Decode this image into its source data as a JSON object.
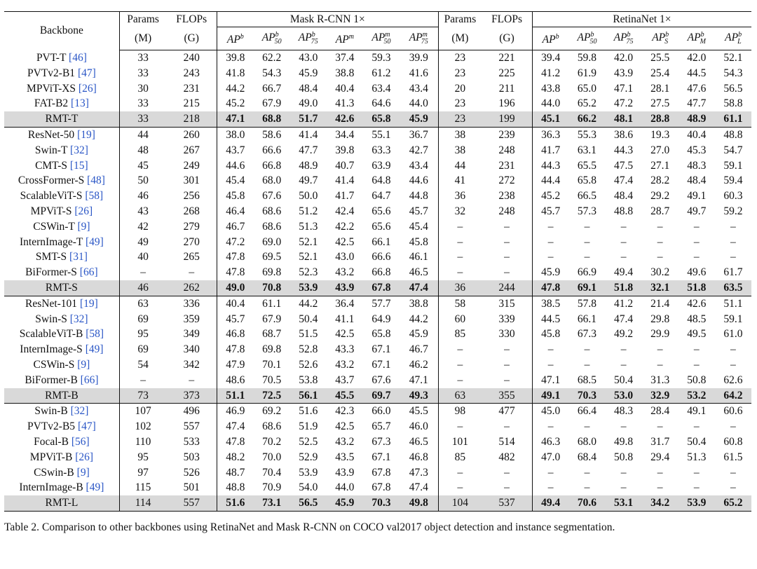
{
  "header": {
    "backbone": "Backbone",
    "params": "Params",
    "params_unit": "(M)",
    "flops": "FLOPs",
    "flops_unit": "(G)",
    "mask_group": "Mask R-CNN 1×",
    "retina_group": "RetinaNet 1×"
  },
  "sections": [
    [
      {
        "name": "PVT-T",
        "ref": "[46]",
        "m": [
          "33",
          "240",
          "39.8",
          "62.2",
          "43.0",
          "37.4",
          "59.3",
          "39.9"
        ],
        "r": [
          "23",
          "221",
          "39.4",
          "59.8",
          "42.0",
          "25.5",
          "42.0",
          "52.1"
        ]
      },
      {
        "name": "PVTv2-B1",
        "ref": "[47]",
        "m": [
          "33",
          "243",
          "41.8",
          "54.3",
          "45.9",
          "38.8",
          "61.2",
          "41.6"
        ],
        "r": [
          "23",
          "225",
          "41.2",
          "61.9",
          "43.9",
          "25.4",
          "44.5",
          "54.3"
        ]
      },
      {
        "name": "MPViT-XS",
        "ref": "[26]",
        "m": [
          "30",
          "231",
          "44.2",
          "66.7",
          "48.4",
          "40.4",
          "63.4",
          "43.4"
        ],
        "r": [
          "20",
          "211",
          "43.8",
          "65.0",
          "47.1",
          "28.1",
          "47.6",
          "56.5"
        ]
      },
      {
        "name": "FAT-B2",
        "ref": "[13]",
        "m": [
          "33",
          "215",
          "45.2",
          "67.9",
          "49.0",
          "41.3",
          "64.6",
          "44.0"
        ],
        "r": [
          "23",
          "196",
          "44.0",
          "65.2",
          "47.2",
          "27.5",
          "47.7",
          "58.8"
        ]
      },
      {
        "name": "RMT-T",
        "ref": "",
        "rmt": true,
        "m": [
          "33",
          "218",
          "47.1",
          "68.8",
          "51.7",
          "42.6",
          "65.8",
          "45.9"
        ],
        "r": [
          "23",
          "199",
          "45.1",
          "66.2",
          "48.1",
          "28.8",
          "48.9",
          "61.1"
        ]
      }
    ],
    [
      {
        "name": "ResNet-50",
        "ref": "[19]",
        "m": [
          "44",
          "260",
          "38.0",
          "58.6",
          "41.4",
          "34.4",
          "55.1",
          "36.7"
        ],
        "r": [
          "38",
          "239",
          "36.3",
          "55.3",
          "38.6",
          "19.3",
          "40.4",
          "48.8"
        ]
      },
      {
        "name": "Swin-T",
        "ref": "[32]",
        "m": [
          "48",
          "267",
          "43.7",
          "66.6",
          "47.7",
          "39.8",
          "63.3",
          "42.7"
        ],
        "r": [
          "38",
          "248",
          "41.7",
          "63.1",
          "44.3",
          "27.0",
          "45.3",
          "54.7"
        ]
      },
      {
        "name": "CMT-S",
        "ref": "[15]",
        "m": [
          "45",
          "249",
          "44.6",
          "66.8",
          "48.9",
          "40.7",
          "63.9",
          "43.4"
        ],
        "r": [
          "44",
          "231",
          "44.3",
          "65.5",
          "47.5",
          "27.1",
          "48.3",
          "59.1"
        ]
      },
      {
        "name": "CrossFormer-S",
        "ref": "[48]",
        "m": [
          "50",
          "301",
          "45.4",
          "68.0",
          "49.7",
          "41.4",
          "64.8",
          "44.6"
        ],
        "r": [
          "41",
          "272",
          "44.4",
          "65.8",
          "47.4",
          "28.2",
          "48.4",
          "59.4"
        ]
      },
      {
        "name": "ScalableViT-S",
        "ref": "[58]",
        "m": [
          "46",
          "256",
          "45.8",
          "67.6",
          "50.0",
          "41.7",
          "64.7",
          "44.8"
        ],
        "r": [
          "36",
          "238",
          "45.2",
          "66.5",
          "48.4",
          "29.2",
          "49.1",
          "60.3"
        ]
      },
      {
        "name": "MPViT-S",
        "ref": "[26]",
        "m": [
          "43",
          "268",
          "46.4",
          "68.6",
          "51.2",
          "42.4",
          "65.6",
          "45.7"
        ],
        "r": [
          "32",
          "248",
          "45.7",
          "57.3",
          "48.8",
          "28.7",
          "49.7",
          "59.2"
        ]
      },
      {
        "name": "CSWin-T",
        "ref": "[9]",
        "m": [
          "42",
          "279",
          "46.7",
          "68.6",
          "51.3",
          "42.2",
          "65.6",
          "45.4"
        ],
        "r": [
          "–",
          "–",
          "–",
          "–",
          "–",
          "–",
          "–",
          "–"
        ]
      },
      {
        "name": "InternImage-T",
        "ref": "[49]",
        "m": [
          "49",
          "270",
          "47.2",
          "69.0",
          "52.1",
          "42.5",
          "66.1",
          "45.8"
        ],
        "r": [
          "–",
          "–",
          "–",
          "–",
          "–",
          "–",
          "–",
          "–"
        ]
      },
      {
        "name": "SMT-S",
        "ref": "[31]",
        "m": [
          "40",
          "265",
          "47.8",
          "69.5",
          "52.1",
          "43.0",
          "66.6",
          "46.1"
        ],
        "r": [
          "–",
          "–",
          "–",
          "–",
          "–",
          "–",
          "–",
          "–"
        ]
      },
      {
        "name": "BiFormer-S",
        "ref": "[66]",
        "m": [
          "–",
          "–",
          "47.8",
          "69.8",
          "52.3",
          "43.2",
          "66.8",
          "46.5"
        ],
        "r": [
          "–",
          "–",
          "45.9",
          "66.9",
          "49.4",
          "30.2",
          "49.6",
          "61.7"
        ]
      },
      {
        "name": "RMT-S",
        "ref": "",
        "rmt": true,
        "m": [
          "46",
          "262",
          "49.0",
          "70.8",
          "53.9",
          "43.9",
          "67.8",
          "47.4"
        ],
        "r": [
          "36",
          "244",
          "47.8",
          "69.1",
          "51.8",
          "32.1",
          "51.8",
          "63.5"
        ]
      }
    ],
    [
      {
        "name": "ResNet-101",
        "ref": "[19]",
        "m": [
          "63",
          "336",
          "40.4",
          "61.1",
          "44.2",
          "36.4",
          "57.7",
          "38.8"
        ],
        "r": [
          "58",
          "315",
          "38.5",
          "57.8",
          "41.2",
          "21.4",
          "42.6",
          "51.1"
        ]
      },
      {
        "name": "Swin-S",
        "ref": "[32]",
        "m": [
          "69",
          "359",
          "45.7",
          "67.9",
          "50.4",
          "41.1",
          "64.9",
          "44.2"
        ],
        "r": [
          "60",
          "339",
          "44.5",
          "66.1",
          "47.4",
          "29.8",
          "48.5",
          "59.1"
        ]
      },
      {
        "name": "ScalableViT-B",
        "ref": "[58]",
        "m": [
          "95",
          "349",
          "46.8",
          "68.7",
          "51.5",
          "42.5",
          "65.8",
          "45.9"
        ],
        "r": [
          "85",
          "330",
          "45.8",
          "67.3",
          "49.2",
          "29.9",
          "49.5",
          "61.0"
        ]
      },
      {
        "name": "InternImage-S",
        "ref": "[49]",
        "m": [
          "69",
          "340",
          "47.8",
          "69.8",
          "52.8",
          "43.3",
          "67.1",
          "46.7"
        ],
        "r": [
          "–",
          "–",
          "–",
          "–",
          "–",
          "–",
          "–",
          "–"
        ]
      },
      {
        "name": "CSWin-S",
        "ref": "[9]",
        "m": [
          "54",
          "342",
          "47.9",
          "70.1",
          "52.6",
          "43.2",
          "67.1",
          "46.2"
        ],
        "r": [
          "–",
          "–",
          "–",
          "–",
          "–",
          "–",
          "–",
          "–"
        ]
      },
      {
        "name": "BiFormer-B",
        "ref": "[66]",
        "m": [
          "–",
          "–",
          "48.6",
          "70.5",
          "53.8",
          "43.7",
          "67.6",
          "47.1"
        ],
        "r": [
          "–",
          "–",
          "47.1",
          "68.5",
          "50.4",
          "31.3",
          "50.8",
          "62.6"
        ]
      },
      {
        "name": "RMT-B",
        "ref": "",
        "rmt": true,
        "m": [
          "73",
          "373",
          "51.1",
          "72.5",
          "56.1",
          "45.5",
          "69.7",
          "49.3"
        ],
        "r": [
          "63",
          "355",
          "49.1",
          "70.3",
          "53.0",
          "32.9",
          "53.2",
          "64.2"
        ]
      }
    ],
    [
      {
        "name": "Swin-B",
        "ref": "[32]",
        "m": [
          "107",
          "496",
          "46.9",
          "69.2",
          "51.6",
          "42.3",
          "66.0",
          "45.5"
        ],
        "r": [
          "98",
          "477",
          "45.0",
          "66.4",
          "48.3",
          "28.4",
          "49.1",
          "60.6"
        ]
      },
      {
        "name": "PVTv2-B5",
        "ref": "[47]",
        "m": [
          "102",
          "557",
          "47.4",
          "68.6",
          "51.9",
          "42.5",
          "65.7",
          "46.0"
        ],
        "r": [
          "–",
          "–",
          "–",
          "–",
          "–",
          "–",
          "–",
          "–"
        ]
      },
      {
        "name": "Focal-B",
        "ref": "[56]",
        "m": [
          "110",
          "533",
          "47.8",
          "70.2",
          "52.5",
          "43.2",
          "67.3",
          "46.5"
        ],
        "r": [
          "101",
          "514",
          "46.3",
          "68.0",
          "49.8",
          "31.7",
          "50.4",
          "60.8"
        ]
      },
      {
        "name": "MPViT-B",
        "ref": "[26]",
        "m": [
          "95",
          "503",
          "48.2",
          "70.0",
          "52.9",
          "43.5",
          "67.1",
          "46.8"
        ],
        "r": [
          "85",
          "482",
          "47.0",
          "68.4",
          "50.8",
          "29.4",
          "51.3",
          "61.5"
        ]
      },
      {
        "name": "CSwin-B",
        "ref": "[9]",
        "m": [
          "97",
          "526",
          "48.7",
          "70.4",
          "53.9",
          "43.9",
          "67.8",
          "47.3"
        ],
        "r": [
          "–",
          "–",
          "–",
          "–",
          "–",
          "–",
          "–",
          "–"
        ]
      },
      {
        "name": "InternImage-B",
        "ref": "[49]",
        "m": [
          "115",
          "501",
          "48.8",
          "70.9",
          "54.0",
          "44.0",
          "67.8",
          "47.4"
        ],
        "r": [
          "–",
          "–",
          "–",
          "–",
          "–",
          "–",
          "–",
          "–"
        ]
      },
      {
        "name": "RMT-L",
        "ref": "",
        "rmt": true,
        "m": [
          "114",
          "557",
          "51.6",
          "73.1",
          "56.5",
          "45.9",
          "70.3",
          "49.8"
        ],
        "r": [
          "104",
          "537",
          "49.4",
          "70.6",
          "53.1",
          "34.2",
          "53.9",
          "65.2"
        ]
      }
    ]
  ],
  "caption": "Table 2. Comparison to other backbones using RetinaNet and Mask R-CNN on COCO val2017 object detection and instance segmentation."
}
